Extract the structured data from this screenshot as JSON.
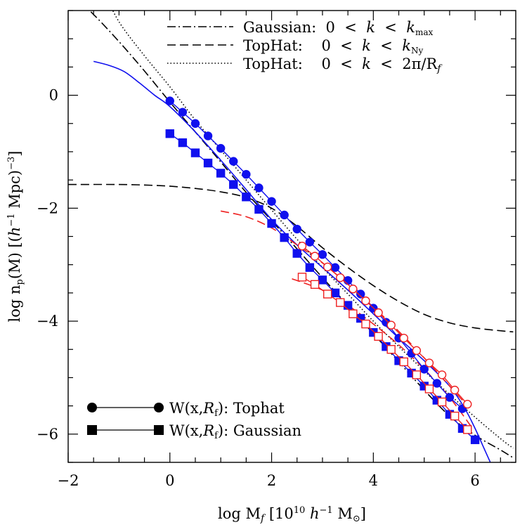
{
  "chart_data": {
    "type": "line",
    "xlabel": "log M_f [10^10 h^-1 M_⊙]",
    "ylabel": "log n_p(M) [(h^-1 Mpc)^-3]",
    "xlim": [
      -2,
      6.8
    ],
    "ylim": [
      -6.5,
      1.5
    ],
    "grid": false,
    "x_ticks": [
      -2,
      0,
      2,
      4,
      6
    ],
    "x_tick_labels": [
      "−2",
      "0",
      "2",
      "4",
      "6"
    ],
    "y_ticks": [
      -6,
      -4,
      -2,
      0
    ],
    "y_tick_labels": [
      "−6",
      "−4",
      "−2",
      "0"
    ],
    "colors": {
      "blue": "#1010ee",
      "red": "#ee2020",
      "black": "#000000"
    },
    "legend_top": {
      "placement": "top-right",
      "entries": [
        {
          "style": "dash-dot",
          "label": "Gaussian: 0 < k < k_max"
        },
        {
          "style": "dashed",
          "label": "TopHat: 0 < k < k_Ny"
        },
        {
          "style": "dotted",
          "label": "TopHat: 0 < k < 2π/R_f"
        }
      ]
    },
    "legend_bottom": {
      "placement": "bottom-left",
      "entries": [
        {
          "marker": "circle",
          "label": "W(x,R_f): Tophat"
        },
        {
          "marker": "square",
          "label": "W(x,R_f): Gaussian"
        }
      ]
    },
    "series": [
      {
        "style": "dash-dot",
        "color": "black",
        "x": [
          -2.0,
          -1.5,
          -1.0,
          -0.5,
          0.0,
          0.5,
          1.0,
          1.5,
          2.0,
          2.5,
          3.0,
          3.5,
          4.0,
          4.5,
          5.0,
          5.5,
          6.0,
          6.5,
          6.75
        ],
        "y": [
          1.85,
          1.43,
          0.95,
          0.43,
          -0.12,
          -0.65,
          -1.18,
          -1.72,
          -2.22,
          -2.72,
          -3.23,
          -3.72,
          -4.22,
          -4.72,
          -5.22,
          -5.68,
          -6.02,
          -6.28,
          -6.42
        ]
      },
      {
        "style": "dashed",
        "color": "black",
        "x": [
          -2.0,
          -1.0,
          -0.5,
          0.0,
          0.5,
          1.0,
          1.5,
          2.0,
          2.5,
          3.0,
          3.5,
          4.0,
          4.5,
          5.0,
          5.5,
          6.0,
          6.5,
          6.75
        ],
        "y": [
          -1.58,
          -1.58,
          -1.59,
          -1.61,
          -1.65,
          -1.71,
          -1.81,
          -2.0,
          -2.32,
          -2.7,
          -3.05,
          -3.37,
          -3.65,
          -3.88,
          -4.03,
          -4.12,
          -4.17,
          -4.19
        ]
      },
      {
        "style": "dotted",
        "color": "black",
        "x": [
          -1.3,
          -1.0,
          -0.5,
          0.0,
          0.5,
          1.0,
          1.5,
          2.0,
          2.5,
          3.0,
          3.5,
          4.0,
          4.5,
          5.0,
          5.5,
          6.0,
          6.5,
          6.75
        ],
        "y": [
          1.85,
          1.3,
          0.7,
          0.15,
          -0.44,
          -0.97,
          -1.5,
          -2.03,
          -2.55,
          -3.05,
          -3.52,
          -4.0,
          -4.45,
          -4.88,
          -5.3,
          -5.7,
          -6.08,
          -6.25
        ]
      },
      {
        "style": "solid-curve",
        "color": "blue",
        "x": [
          -1.5,
          -1.2,
          -0.9,
          -0.6,
          -0.3,
          0.0,
          0.5,
          1.0,
          1.5,
          2.0,
          2.5,
          3.0,
          3.5,
          4.0,
          4.5,
          5.0,
          5.5,
          5.8,
          6.0,
          6.2,
          6.35
        ],
        "y": [
          0.6,
          0.53,
          0.42,
          0.22,
          0.0,
          -0.2,
          -0.65,
          -1.15,
          -1.67,
          -2.2,
          -2.65,
          -3.05,
          -3.45,
          -3.87,
          -4.3,
          -4.7,
          -5.15,
          -5.55,
          -5.9,
          -6.3,
          -6.6
        ]
      },
      {
        "style": "dashed",
        "color": "red",
        "x": [
          1.0,
          1.5,
          2.0,
          2.5,
          3.0,
          3.5,
          4.0,
          4.5,
          5.0,
          5.5,
          5.8
        ],
        "y": [
          -2.05,
          -2.15,
          -2.35,
          -2.65,
          -2.97,
          -3.35,
          -3.75,
          -4.18,
          -4.65,
          -5.15,
          -5.45
        ]
      },
      {
        "style": "dashed",
        "color": "red",
        "x": [
          2.4,
          3.0,
          3.5,
          4.0,
          4.5,
          5.0,
          5.5,
          5.95
        ],
        "y": [
          -3.25,
          -3.45,
          -3.72,
          -4.05,
          -4.42,
          -4.85,
          -5.35,
          -5.9
        ]
      },
      {
        "marker": "circle",
        "filled": true,
        "color": "blue",
        "line": "solid",
        "x": [
          0.0,
          0.25,
          0.5,
          0.75,
          1.0,
          1.25,
          1.5,
          1.75,
          2.0,
          2.25,
          2.5,
          2.75,
          3.0,
          3.25,
          3.5,
          3.75,
          4.0,
          4.25,
          4.5,
          4.75,
          5.0,
          5.25,
          5.5,
          5.75
        ],
        "y": [
          -0.1,
          -0.3,
          -0.5,
          -0.72,
          -0.94,
          -1.17,
          -1.4,
          -1.64,
          -1.88,
          -2.12,
          -2.37,
          -2.6,
          -2.82,
          -3.05,
          -3.28,
          -3.52,
          -3.77,
          -4.02,
          -4.3,
          -4.57,
          -4.85,
          -5.1,
          -5.35,
          -5.55
        ]
      },
      {
        "marker": "square",
        "filled": true,
        "color": "blue",
        "line": "solid",
        "x": [
          0.0,
          0.25,
          0.5,
          0.75,
          1.0,
          1.25,
          1.5,
          1.75,
          2.0,
          2.25,
          2.5,
          2.75,
          3.0,
          3.25,
          3.5,
          3.75,
          4.0,
          4.25,
          4.5,
          4.75,
          5.0,
          5.25,
          5.5,
          5.75,
          6.0
        ],
        "y": [
          -0.68,
          -0.84,
          -1.02,
          -1.2,
          -1.38,
          -1.58,
          -1.8,
          -2.02,
          -2.27,
          -2.52,
          -2.8,
          -3.05,
          -3.27,
          -3.5,
          -3.72,
          -3.95,
          -4.2,
          -4.45,
          -4.7,
          -4.92,
          -5.15,
          -5.4,
          -5.65,
          -5.9,
          -6.1
        ]
      },
      {
        "marker": "circle",
        "filled": false,
        "color": "red",
        "line": "solid",
        "x": [
          2.6,
          2.85,
          3.1,
          3.35,
          3.6,
          3.85,
          4.1,
          4.35,
          4.6,
          4.85,
          5.1,
          5.35,
          5.6,
          5.85
        ],
        "y": [
          -2.67,
          -2.85,
          -3.04,
          -3.23,
          -3.43,
          -3.64,
          -3.85,
          -4.07,
          -4.3,
          -4.52,
          -4.74,
          -4.95,
          -5.22,
          -5.47
        ]
      },
      {
        "marker": "square",
        "filled": false,
        "color": "red",
        "line": "solid",
        "x": [
          2.6,
          2.85,
          3.1,
          3.35,
          3.6,
          3.85,
          4.1,
          4.35,
          4.6,
          4.85,
          5.1,
          5.35,
          5.6,
          5.85
        ],
        "y": [
          -3.22,
          -3.35,
          -3.52,
          -3.67,
          -3.87,
          -4.05,
          -4.27,
          -4.5,
          -4.72,
          -4.95,
          -5.2,
          -5.43,
          -5.68,
          -5.92
        ]
      }
    ]
  }
}
